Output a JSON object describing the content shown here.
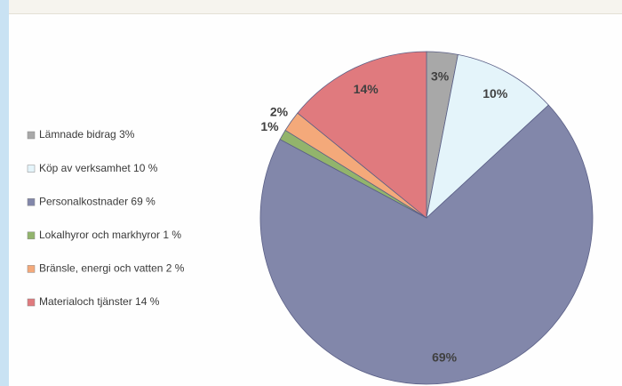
{
  "chart_data": {
    "type": "pie",
    "categories": [
      "Lämnade bidrag 3%",
      "Köp av verksamhet 10 %",
      "Personalkostnader 69 %",
      "Lokalhyror och markhyror 1 %",
      "Bränsle, energi och vatten 2 %",
      "Materialoch tjänster  14 %"
    ],
    "values": [
      3,
      10,
      69,
      1,
      2,
      14
    ],
    "value_labels": [
      "3%",
      "10%",
      "69%",
      "1%",
      "2%",
      "14%"
    ],
    "colors": [
      "#a8a8a8",
      "#e4f4fa",
      "#8287aa",
      "#92b46c",
      "#f4a97a",
      "#e07a7e"
    ],
    "legend": "left"
  }
}
